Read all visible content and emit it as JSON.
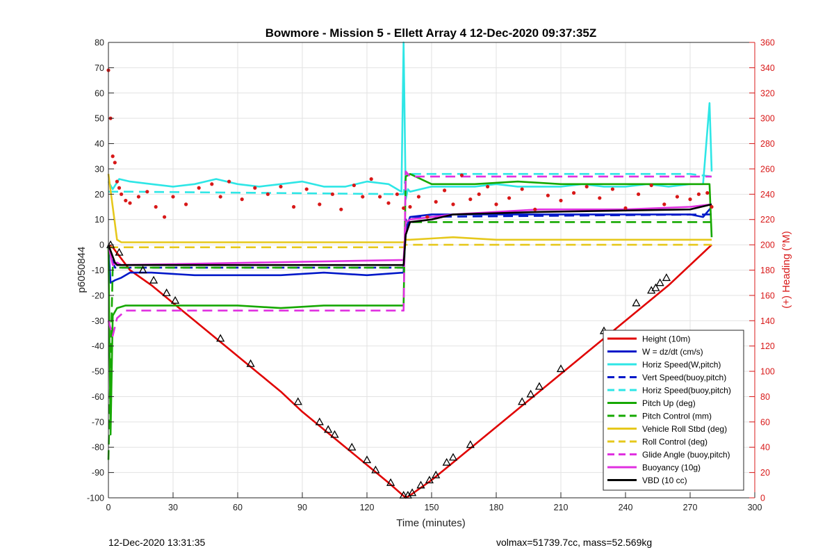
{
  "chart_data": {
    "type": "line",
    "title": "Bowmore - Mission 5 - Ellett Array 4 12-Dec-2020 09:37:35Z",
    "xlabel": "Time (minutes)",
    "ylabel": "p6050844",
    "ylabel_right": "(+) Heading (°M)",
    "xlim": [
      0,
      300
    ],
    "ylim": [
      -100,
      80
    ],
    "ylim_right": [
      0,
      360
    ],
    "xticks": [
      0,
      30,
      60,
      90,
      120,
      150,
      180,
      210,
      240,
      270,
      300
    ],
    "yticks": [
      -100,
      -90,
      -80,
      -70,
      -60,
      -50,
      -40,
      -30,
      -20,
      -10,
      0,
      10,
      20,
      30,
      40,
      50,
      60,
      70,
      80
    ],
    "yticks_right": [
      0,
      20,
      40,
      60,
      80,
      100,
      120,
      140,
      160,
      180,
      200,
      220,
      240,
      260,
      280,
      300,
      320,
      340,
      360
    ],
    "grid": true,
    "legend_position": "bottom-right",
    "colors": {
      "red": "#e00000",
      "blue": "#0018c8",
      "cyan": "#2ee6e6",
      "green": "#16a800",
      "yellow": "#e6c81c",
      "magenta": "#e030e0",
      "black": "#000000",
      "right_axis": "#d81818"
    },
    "series": [
      {
        "name": "Height (10m)",
        "color": "red",
        "style": "solid",
        "x": [
          0,
          2,
          10,
          20,
          30,
          40,
          50,
          60,
          70,
          80,
          90,
          100,
          110,
          120,
          130,
          138,
          140,
          150,
          160,
          170,
          180,
          190,
          200,
          210,
          220,
          230,
          240,
          250,
          260,
          270,
          280
        ],
        "y": [
          0,
          -1,
          -10,
          -16,
          -23,
          -30,
          -37,
          -44,
          -51,
          -58,
          -66,
          -73,
          -80,
          -87,
          -94,
          -100,
          -99,
          -93,
          -86,
          -79,
          -72,
          -65,
          -58,
          -51,
          -44,
          -37,
          -30,
          -23,
          -16,
          -8,
          0
        ]
      },
      {
        "name": "W = dz/dt (cm/s)",
        "color": "blue",
        "style": "solid",
        "x": [
          0,
          1,
          3,
          6,
          10,
          20,
          40,
          60,
          80,
          100,
          120,
          137,
          138,
          140,
          150,
          170,
          190,
          210,
          230,
          250,
          270,
          276,
          279,
          280
        ],
        "y": [
          -1,
          -15,
          -14,
          -13,
          -11,
          -11,
          -12,
          -12,
          -12,
          -11,
          -12,
          -11,
          6,
          11,
          12,
          12,
          12,
          12,
          12,
          12,
          12,
          11,
          14,
          15
        ]
      },
      {
        "name": "Horiz Speed(W,pitch)",
        "color": "cyan",
        "style": "solid",
        "x": [
          0,
          2,
          5,
          10,
          20,
          30,
          40,
          50,
          60,
          70,
          80,
          90,
          100,
          110,
          120,
          130,
          136,
          137,
          138,
          139,
          140,
          150,
          160,
          170,
          180,
          190,
          200,
          210,
          220,
          230,
          240,
          250,
          260,
          270,
          276,
          279,
          280
        ],
        "y": [
          25,
          22,
          26,
          25,
          24,
          23,
          24,
          26,
          24,
          23,
          24,
          25,
          23,
          23,
          25,
          24,
          21,
          80,
          18,
          22,
          21,
          23,
          23,
          23,
          24,
          23,
          23,
          23,
          24,
          23,
          23,
          24,
          23,
          24,
          24,
          56,
          29
        ]
      },
      {
        "name": "Vert Speed(buoy,pitch)",
        "color": "blue",
        "style": "dashed",
        "x": [
          0,
          3,
          10,
          137,
          138,
          140,
          280
        ],
        "y": [
          0,
          -9,
          -9,
          -9,
          10,
          11,
          12
        ]
      },
      {
        "name": "Horiz Speed(buoy,pitch)",
        "color": "cyan",
        "style": "dashed",
        "x": [
          0,
          4,
          10,
          137,
          138,
          140,
          180,
          230,
          270,
          280
        ],
        "y": [
          21,
          21,
          21,
          20,
          28,
          28,
          28,
          28,
          28,
          27
        ]
      },
      {
        "name": "Pitch Up (deg)",
        "color": "green",
        "style": "solid",
        "x": [
          0,
          1,
          2,
          4,
          8,
          20,
          40,
          60,
          80,
          100,
          120,
          137,
          138,
          140,
          150,
          170,
          190,
          210,
          230,
          250,
          270,
          279,
          280
        ],
        "y": [
          0,
          -75,
          -28,
          -25,
          -24,
          -24,
          -24,
          -24,
          -25,
          -24,
          -24,
          -24,
          27,
          28,
          24,
          24,
          25,
          24,
          24,
          24,
          24,
          24,
          3
        ]
      },
      {
        "name": "Pitch Control (mm)",
        "color": "green",
        "style": "dashed",
        "x": [
          0,
          2,
          4,
          137,
          138,
          140,
          280
        ],
        "y": [
          -85,
          -9,
          -9,
          -9,
          9,
          9,
          9
        ]
      },
      {
        "name": "Vehicle Roll Stbd (deg)",
        "color": "yellow",
        "style": "solid",
        "x": [
          0,
          4,
          6,
          137,
          138,
          140,
          160,
          180,
          200,
          220,
          240,
          260,
          280
        ],
        "y": [
          28,
          2,
          1,
          1,
          2,
          2,
          3,
          2,
          2,
          2,
          2,
          2,
          2
        ]
      },
      {
        "name": "Roll Control (deg)",
        "color": "yellow",
        "style": "dashed",
        "x": [
          0,
          4,
          137,
          138,
          140,
          280
        ],
        "y": [
          -1,
          -1,
          -1,
          0,
          0,
          0
        ]
      },
      {
        "name": "Glide Angle (buoy,pitch)",
        "color": "magenta",
        "style": "dashed",
        "x": [
          0,
          2,
          4,
          8,
          137,
          138,
          140,
          280
        ],
        "y": [
          -30,
          -36,
          -29,
          -26,
          -26,
          29,
          27,
          27
        ]
      },
      {
        "name": "Buoyancy (10g)",
        "color": "magenta",
        "style": "solid",
        "x": [
          0,
          2,
          4,
          6,
          137,
          138,
          140,
          160,
          200,
          240,
          270,
          280
        ],
        "y": [
          0,
          -8,
          -7,
          -8,
          -6,
          9,
          10,
          12,
          14,
          14,
          15,
          16
        ]
      },
      {
        "name": "VBD (10 cc)",
        "color": "black",
        "style": "solid",
        "x": [
          0,
          3,
          4,
          137,
          138,
          140,
          150,
          160,
          200,
          270,
          280
        ],
        "y": [
          0,
          -7,
          -8,
          -8,
          4,
          9,
          10,
          12,
          13,
          14,
          16
        ]
      },
      {
        "name": "Heading",
        "color": "right_axis",
        "style": "dots",
        "axis": "right",
        "x": [
          0,
          1,
          2,
          3,
          4,
          5,
          6,
          8,
          10,
          14,
          18,
          22,
          26,
          30,
          36,
          42,
          48,
          52,
          56,
          62,
          68,
          74,
          80,
          86,
          92,
          98,
          104,
          108,
          114,
          118,
          122,
          126,
          130,
          134,
          137,
          140,
          144,
          148,
          152,
          156,
          160,
          164,
          168,
          172,
          176,
          180,
          186,
          192,
          198,
          204,
          210,
          216,
          222,
          228,
          234,
          240,
          246,
          252,
          258,
          264,
          270,
          274,
          278,
          280
        ],
        "y": [
          338,
          300,
          270,
          265,
          250,
          245,
          240,
          235,
          233,
          238,
          242,
          230,
          222,
          238,
          232,
          245,
          248,
          238,
          250,
          236,
          245,
          240,
          246,
          230,
          244,
          232,
          240,
          228,
          247,
          238,
          252,
          238,
          233,
          240,
          229,
          230,
          238,
          222,
          234,
          243,
          232,
          255,
          236,
          240,
          246,
          232,
          237,
          244,
          228,
          239,
          235,
          241,
          246,
          237,
          244,
          229,
          240,
          247,
          232,
          238,
          236,
          240,
          241,
          230
        ]
      }
    ],
    "markers": {
      "x": [
        1,
        5,
        16,
        21,
        27,
        31,
        52,
        66,
        88,
        98,
        102,
        105,
        113,
        120,
        124,
        131,
        137,
        139,
        141,
        145,
        149,
        152,
        157,
        160,
        168,
        192,
        196,
        200,
        210,
        230,
        245,
        252,
        254,
        256,
        259
      ],
      "y": [
        0,
        -3,
        -10,
        -14,
        -19,
        -22,
        -37,
        -47,
        -62,
        -70,
        -73,
        -75,
        -80,
        -85,
        -89,
        -94,
        -99,
        -99,
        -98,
        -95,
        -93,
        -91,
        -86,
        -84,
        -79,
        -62,
        -59,
        -56,
        -49,
        -34,
        -23,
        -18,
        -17,
        -15,
        -13
      ]
    }
  },
  "footer": {
    "left": "12-Dec-2020 13:31:35",
    "right": "volmax=51739.7cc, mass=52.569kg"
  }
}
